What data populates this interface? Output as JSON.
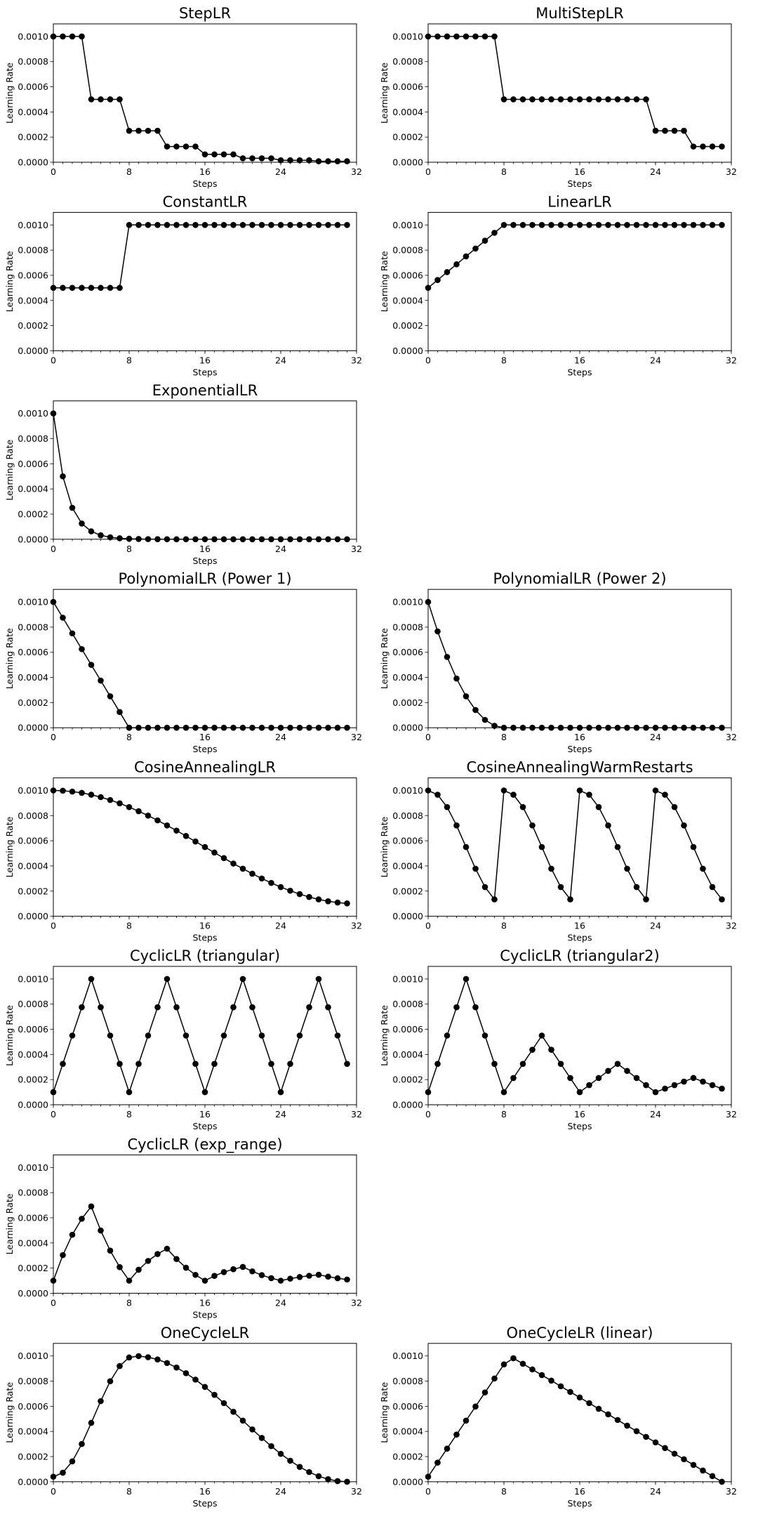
{
  "chart_data": [
    {
      "type": "line",
      "title": "StepLR",
      "xlabel": "Steps",
      "ylabel": "Learning Rate",
      "xlim": [
        0,
        32
      ],
      "ylim": [
        0,
        0.0011
      ],
      "xticks": [
        "0",
        "8",
        "16",
        "24",
        "32"
      ],
      "yticks": [
        "0.0000",
        "0.0002",
        "0.0004",
        "0.0006",
        "0.0008",
        "0.0010"
      ],
      "grid": false,
      "x": [
        0,
        1,
        2,
        3,
        4,
        5,
        6,
        7,
        8,
        9,
        10,
        11,
        12,
        13,
        14,
        15,
        16,
        17,
        18,
        19,
        20,
        21,
        22,
        23,
        24,
        25,
        26,
        27,
        28,
        29,
        30,
        31
      ],
      "values": [
        0.001,
        0.001,
        0.001,
        0.001,
        0.0005,
        0.0005,
        0.0005,
        0.0005,
        0.00025,
        0.00025,
        0.00025,
        0.00025,
        0.000125,
        0.000125,
        0.000125,
        0.000125,
        6.25e-05,
        6.25e-05,
        6.25e-05,
        6.25e-05,
        3.125e-05,
        3.125e-05,
        3.125e-05,
        3.125e-05,
        1.56e-05,
        1.56e-05,
        1.56e-05,
        1.56e-05,
        7.8e-06,
        7.8e-06,
        7.8e-06,
        7.8e-06
      ]
    },
    {
      "type": "line",
      "title": "MultiStepLR",
      "xlabel": "Steps",
      "ylabel": "Learning Rate",
      "xlim": [
        0,
        32
      ],
      "ylim": [
        0,
        0.0011
      ],
      "xticks": [
        "0",
        "8",
        "16",
        "24",
        "32"
      ],
      "yticks": [
        "0.0000",
        "0.0002",
        "0.0004",
        "0.0006",
        "0.0008",
        "0.0010"
      ],
      "grid": false,
      "x": [
        0,
        1,
        2,
        3,
        4,
        5,
        6,
        7,
        8,
        9,
        10,
        11,
        12,
        13,
        14,
        15,
        16,
        17,
        18,
        19,
        20,
        21,
        22,
        23,
        24,
        25,
        26,
        27,
        28,
        29,
        30,
        31
      ],
      "values": [
        0.001,
        0.001,
        0.001,
        0.001,
        0.001,
        0.001,
        0.001,
        0.001,
        0.0005,
        0.0005,
        0.0005,
        0.0005,
        0.0005,
        0.0005,
        0.0005,
        0.0005,
        0.0005,
        0.0005,
        0.0005,
        0.0005,
        0.0005,
        0.0005,
        0.0005,
        0.0005,
        0.00025,
        0.00025,
        0.00025,
        0.00025,
        0.000125,
        0.000125,
        0.000125,
        0.000125
      ]
    },
    {
      "type": "line",
      "title": "ConstantLR",
      "xlabel": "Steps",
      "ylabel": "Learning Rate",
      "xlim": [
        0,
        32
      ],
      "ylim": [
        0,
        0.0011
      ],
      "xticks": [
        "0",
        "8",
        "16",
        "24",
        "32"
      ],
      "yticks": [
        "0.0000",
        "0.0002",
        "0.0004",
        "0.0006",
        "0.0008",
        "0.0010"
      ],
      "grid": false,
      "x": [
        0,
        1,
        2,
        3,
        4,
        5,
        6,
        7,
        8,
        9,
        10,
        11,
        12,
        13,
        14,
        15,
        16,
        17,
        18,
        19,
        20,
        21,
        22,
        23,
        24,
        25,
        26,
        27,
        28,
        29,
        30,
        31
      ],
      "values": [
        0.0005,
        0.0005,
        0.0005,
        0.0005,
        0.0005,
        0.0005,
        0.0005,
        0.0005,
        0.001,
        0.001,
        0.001,
        0.001,
        0.001,
        0.001,
        0.001,
        0.001,
        0.001,
        0.001,
        0.001,
        0.001,
        0.001,
        0.001,
        0.001,
        0.001,
        0.001,
        0.001,
        0.001,
        0.001,
        0.001,
        0.001,
        0.001,
        0.001
      ]
    },
    {
      "type": "line",
      "title": "LinearLR",
      "xlabel": "Steps",
      "ylabel": "Learning Rate",
      "xlim": [
        0,
        32
      ],
      "ylim": [
        0,
        0.0011
      ],
      "xticks": [
        "0",
        "8",
        "16",
        "24",
        "32"
      ],
      "yticks": [
        "0.0000",
        "0.0002",
        "0.0004",
        "0.0006",
        "0.0008",
        "0.0010"
      ],
      "grid": false,
      "x": [
        0,
        1,
        2,
        3,
        4,
        5,
        6,
        7,
        8,
        9,
        10,
        11,
        12,
        13,
        14,
        15,
        16,
        17,
        18,
        19,
        20,
        21,
        22,
        23,
        24,
        25,
        26,
        27,
        28,
        29,
        30,
        31
      ],
      "values": [
        0.0005,
        0.0005625,
        0.000625,
        0.0006875,
        0.00075,
        0.0008125,
        0.000875,
        0.0009375,
        0.001,
        0.001,
        0.001,
        0.001,
        0.001,
        0.001,
        0.001,
        0.001,
        0.001,
        0.001,
        0.001,
        0.001,
        0.001,
        0.001,
        0.001,
        0.001,
        0.001,
        0.001,
        0.001,
        0.001,
        0.001,
        0.001,
        0.001,
        0.001
      ]
    },
    {
      "type": "line",
      "title": "ExponentialLR",
      "xlabel": "Steps",
      "ylabel": "Learning Rate",
      "xlim": [
        0,
        32
      ],
      "ylim": [
        0,
        0.0011
      ],
      "xticks": [
        "0",
        "8",
        "16",
        "24",
        "32"
      ],
      "yticks": [
        "0.0000",
        "0.0002",
        "0.0004",
        "0.0006",
        "0.0008",
        "0.0010"
      ],
      "grid": false,
      "x": [
        0,
        1,
        2,
        3,
        4,
        5,
        6,
        7,
        8,
        9,
        10,
        11,
        12,
        13,
        14,
        15,
        16,
        17,
        18,
        19,
        20,
        21,
        22,
        23,
        24,
        25,
        26,
        27,
        28,
        29,
        30,
        31
      ],
      "values": [
        0.001,
        0.0005,
        0.00025,
        0.000125,
        6.25e-05,
        3.125e-05,
        1.56e-05,
        7.8e-06,
        3.9e-06,
        2e-06,
        1e-06,
        5e-07,
        2e-07,
        1e-07,
        1e-07,
        0,
        0,
        0,
        0,
        0,
        0,
        0,
        0,
        0,
        0,
        0,
        0,
        0,
        0,
        0,
        0,
        0
      ]
    },
    {
      "type": "line",
      "title": "PolynomialLR (Power 1)",
      "xlabel": "Steps",
      "ylabel": "Learning Rate",
      "xlim": [
        0,
        32
      ],
      "ylim": [
        0,
        0.0011
      ],
      "xticks": [
        "0",
        "8",
        "16",
        "24",
        "32"
      ],
      "yticks": [
        "0.0000",
        "0.0002",
        "0.0004",
        "0.0006",
        "0.0008",
        "0.0010"
      ],
      "grid": false,
      "x": [
        0,
        1,
        2,
        3,
        4,
        5,
        6,
        7,
        8,
        9,
        10,
        11,
        12,
        13,
        14,
        15,
        16,
        17,
        18,
        19,
        20,
        21,
        22,
        23,
        24,
        25,
        26,
        27,
        28,
        29,
        30,
        31
      ],
      "values": [
        0.001,
        0.000875,
        0.00075,
        0.000625,
        0.0005,
        0.000375,
        0.00025,
        0.000125,
        0,
        0,
        0,
        0,
        0,
        0,
        0,
        0,
        0,
        0,
        0,
        0,
        0,
        0,
        0,
        0,
        0,
        0,
        0,
        0,
        0,
        0,
        0,
        0
      ]
    },
    {
      "type": "line",
      "title": "PolynomialLR (Power 2)",
      "xlabel": "Steps",
      "ylabel": "Learning Rate",
      "xlim": [
        0,
        32
      ],
      "ylim": [
        0,
        0.0011
      ],
      "xticks": [
        "0",
        "8",
        "16",
        "24",
        "32"
      ],
      "yticks": [
        "0.0000",
        "0.0002",
        "0.0004",
        "0.0006",
        "0.0008",
        "0.0010"
      ],
      "grid": false,
      "x": [
        0,
        1,
        2,
        3,
        4,
        5,
        6,
        7,
        8,
        9,
        10,
        11,
        12,
        13,
        14,
        15,
        16,
        17,
        18,
        19,
        20,
        21,
        22,
        23,
        24,
        25,
        26,
        27,
        28,
        29,
        30,
        31
      ],
      "values": [
        0.001,
        0.000766,
        0.000563,
        0.000391,
        0.00025,
        0.000141,
        6.25e-05,
        1.56e-05,
        0,
        0,
        0,
        0,
        0,
        0,
        0,
        0,
        0,
        0,
        0,
        0,
        0,
        0,
        0,
        0,
        0,
        0,
        0,
        0,
        0,
        0,
        0,
        0
      ]
    },
    {
      "type": "line",
      "title": "CosineAnnealingLR",
      "xlabel": "Steps",
      "ylabel": "Learning Rate",
      "xlim": [
        0,
        32
      ],
      "ylim": [
        0,
        0.0011
      ],
      "xticks": [
        "0",
        "8",
        "16",
        "24",
        "32"
      ],
      "yticks": [
        "0.0000",
        "0.0002",
        "0.0004",
        "0.0006",
        "0.0008",
        "0.0010"
      ],
      "grid": false,
      "x": [
        0,
        1,
        2,
        3,
        4,
        5,
        6,
        7,
        8,
        9,
        10,
        11,
        12,
        13,
        14,
        15,
        16,
        17,
        18,
        19,
        20,
        21,
        22,
        23,
        24,
        25,
        26,
        27,
        28,
        29,
        30,
        31
      ],
      "values": [
        0.001,
        0.000998,
        0.000991,
        0.000981,
        0.000966,
        0.000947,
        0.000924,
        0.000898,
        0.000868,
        0.000835,
        0.0008,
        0.000762,
        0.000722,
        0.000681,
        0.000638,
        0.000594,
        0.00055,
        0.000506,
        0.000462,
        0.000419,
        0.000378,
        0.000338,
        0.0003,
        0.000265,
        0.000232,
        0.000203,
        0.000176,
        0.000153,
        0.000134,
        0.000119,
        0.000109,
        0.000102
      ]
    },
    {
      "type": "line",
      "title": "CosineAnnealingWarmRestarts",
      "xlabel": "Steps",
      "ylabel": "Learning Rate",
      "xlim": [
        0,
        32
      ],
      "ylim": [
        0,
        0.0011
      ],
      "xticks": [
        "0",
        "8",
        "16",
        "24",
        "32"
      ],
      "yticks": [
        "0.0000",
        "0.0002",
        "0.0004",
        "0.0006",
        "0.0008",
        "0.0010"
      ],
      "grid": false,
      "x": [
        0,
        1,
        2,
        3,
        4,
        5,
        6,
        7,
        8,
        9,
        10,
        11,
        12,
        13,
        14,
        15,
        16,
        17,
        18,
        19,
        20,
        21,
        22,
        23,
        24,
        25,
        26,
        27,
        28,
        29,
        30,
        31
      ],
      "values": [
        0.001,
        0.000966,
        0.000868,
        0.000722,
        0.00055,
        0.000378,
        0.000232,
        0.000134,
        0.001,
        0.000966,
        0.000868,
        0.000722,
        0.00055,
        0.000378,
        0.000232,
        0.000134,
        0.001,
        0.000966,
        0.000868,
        0.000722,
        0.00055,
        0.000378,
        0.000232,
        0.000134,
        0.001,
        0.000966,
        0.000868,
        0.000722,
        0.00055,
        0.000378,
        0.000232,
        0.000134
      ]
    },
    {
      "type": "line",
      "title": "CyclicLR (triangular)",
      "xlabel": "Steps",
      "ylabel": "Learning Rate",
      "xlim": [
        0,
        32
      ],
      "ylim": [
        0,
        0.0011
      ],
      "xticks": [
        "0",
        "8",
        "16",
        "24",
        "32"
      ],
      "yticks": [
        "0.0000",
        "0.0002",
        "0.0004",
        "0.0006",
        "0.0008",
        "0.0010"
      ],
      "grid": false,
      "x": [
        0,
        1,
        2,
        3,
        4,
        5,
        6,
        7,
        8,
        9,
        10,
        11,
        12,
        13,
        14,
        15,
        16,
        17,
        18,
        19,
        20,
        21,
        22,
        23,
        24,
        25,
        26,
        27,
        28,
        29,
        30,
        31
      ],
      "values": [
        0.0001,
        0.000325,
        0.00055,
        0.000775,
        0.001,
        0.000775,
        0.00055,
        0.000325,
        0.0001,
        0.000325,
        0.00055,
        0.000775,
        0.001,
        0.000775,
        0.00055,
        0.000325,
        0.0001,
        0.000325,
        0.00055,
        0.000775,
        0.001,
        0.000775,
        0.00055,
        0.000325,
        0.0001,
        0.000325,
        0.00055,
        0.000775,
        0.001,
        0.000775,
        0.00055,
        0.000325
      ]
    },
    {
      "type": "line",
      "title": "CyclicLR (triangular2)",
      "xlabel": "Steps",
      "ylabel": "Learning Rate",
      "xlim": [
        0,
        32
      ],
      "ylim": [
        0,
        0.0011
      ],
      "xticks": [
        "0",
        "8",
        "16",
        "24",
        "32"
      ],
      "yticks": [
        "0.0000",
        "0.0002",
        "0.0004",
        "0.0006",
        "0.0008",
        "0.0010"
      ],
      "grid": false,
      "x": [
        0,
        1,
        2,
        3,
        4,
        5,
        6,
        7,
        8,
        9,
        10,
        11,
        12,
        13,
        14,
        15,
        16,
        17,
        18,
        19,
        20,
        21,
        22,
        23,
        24,
        25,
        26,
        27,
        28,
        29,
        30,
        31
      ],
      "values": [
        0.0001,
        0.000325,
        0.00055,
        0.000775,
        0.001,
        0.000775,
        0.00055,
        0.000325,
        0.0001,
        0.0002125,
        0.000325,
        0.0004375,
        0.00055,
        0.0004375,
        0.000325,
        0.0002125,
        0.0001,
        0.000156,
        0.0002125,
        0.000269,
        0.000325,
        0.000269,
        0.0002125,
        0.000156,
        0.0001,
        0.000128,
        0.000156,
        0.000184,
        0.000213,
        0.000184,
        0.000156,
        0.000128
      ]
    },
    {
      "type": "line",
      "title": "CyclicLR (exp_range)",
      "xlabel": "Steps",
      "ylabel": "Learning Rate",
      "xlim": [
        0,
        32
      ],
      "ylim": [
        0,
        0.0011
      ],
      "xticks": [
        "0",
        "8",
        "16",
        "24",
        "32"
      ],
      "yticks": [
        "0.0000",
        "0.0002",
        "0.0004",
        "0.0006",
        "0.0008",
        "0.0010"
      ],
      "grid": false,
      "x": [
        0,
        1,
        2,
        3,
        4,
        5,
        6,
        7,
        8,
        9,
        10,
        11,
        12,
        13,
        14,
        15,
        16,
        17,
        18,
        19,
        20,
        21,
        22,
        23,
        24,
        25,
        26,
        27,
        28,
        29,
        30,
        31
      ],
      "values": [
        0.0001,
        0.000303,
        0.000465,
        0.000592,
        0.00069,
        0.000499,
        0.000339,
        0.000208,
        0.0001,
        0.000187,
        0.000257,
        0.000312,
        0.000354,
        0.000272,
        0.000203,
        0.000146,
        0.0001,
        0.000138,
        0.000168,
        0.000191,
        0.000209,
        0.000174,
        0.000144,
        0.00012,
        0.0001,
        0.000116,
        0.000129,
        0.000139,
        0.000147,
        0.000132,
        0.000119,
        0.000109
      ]
    },
    {
      "type": "line",
      "title": "OneCycleLR",
      "xlabel": "Steps",
      "ylabel": "Learning Rate",
      "xlim": [
        0,
        32
      ],
      "ylim": [
        0,
        0.0011
      ],
      "xticks": [
        "0",
        "8",
        "16",
        "24",
        "32"
      ],
      "yticks": [
        "0.0000",
        "0.0002",
        "0.0004",
        "0.0006",
        "0.0008",
        "0.0010"
      ],
      "grid": false,
      "x": [
        0,
        1,
        2,
        3,
        4,
        5,
        6,
        7,
        8,
        9,
        10,
        11,
        12,
        13,
        14,
        15,
        16,
        17,
        18,
        19,
        20,
        21,
        22,
        23,
        24,
        25,
        26,
        27,
        28,
        29,
        30,
        31
      ],
      "values": [
        4e-05,
        7.2e-05,
        0.000162,
        0.0003,
        0.000468,
        0.000641,
        0.000799,
        0.00092,
        0.000988,
        0.000999,
        0.00099,
        0.000972,
        0.000944,
        0.000908,
        0.000863,
        0.000812,
        0.000754,
        0.000691,
        0.000625,
        0.000556,
        0.000486,
        0.000416,
        0.000348,
        0.000283,
        0.000222,
        0.000167,
        0.000118,
        7.7e-05,
        4.4e-05,
        2e-05,
        5e-06,
        0
      ]
    },
    {
      "type": "line",
      "title": "OneCycleLR (linear)",
      "xlabel": "Steps",
      "ylabel": "Learning Rate",
      "xlim": [
        0,
        32
      ],
      "ylim": [
        0,
        0.0011
      ],
      "xticks": [
        "0",
        "8",
        "16",
        "24",
        "32"
      ],
      "yticks": [
        "0.0000",
        "0.0002",
        "0.0004",
        "0.0006",
        "0.0008",
        "0.0010"
      ],
      "grid": false,
      "x": [
        0,
        1,
        2,
        3,
        4,
        5,
        6,
        7,
        8,
        9,
        10,
        11,
        12,
        13,
        14,
        15,
        16,
        17,
        18,
        19,
        20,
        21,
        22,
        23,
        24,
        25,
        26,
        27,
        28,
        29,
        30,
        31
      ],
      "values": [
        4e-05,
        0.000152,
        0.000263,
        0.000375,
        0.000486,
        0.000598,
        0.00071,
        0.000821,
        0.000933,
        0.000982,
        0.000938,
        0.000893,
        0.000848,
        0.000804,
        0.000759,
        0.000714,
        0.00067,
        0.000625,
        0.00058,
        0.000536,
        0.000491,
        0.000446,
        0.000402,
        0.000357,
        0.000313,
        0.000268,
        0.000223,
        0.000179,
        0.000134,
        8.9e-05,
        4.5e-05,
        0
      ]
    }
  ]
}
